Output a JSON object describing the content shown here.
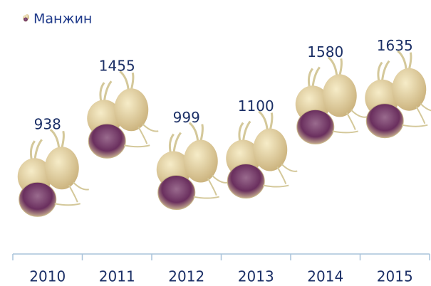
{
  "chart_data": {
    "type": "pictograph",
    "categories": [
      "2010",
      "2011",
      "2012",
      "2013",
      "2014",
      "2015"
    ],
    "series": [
      {
        "name": "Манжин",
        "values": [
          938,
          1455,
          999,
          1100,
          1580,
          1635
        ]
      }
    ]
  }
}
